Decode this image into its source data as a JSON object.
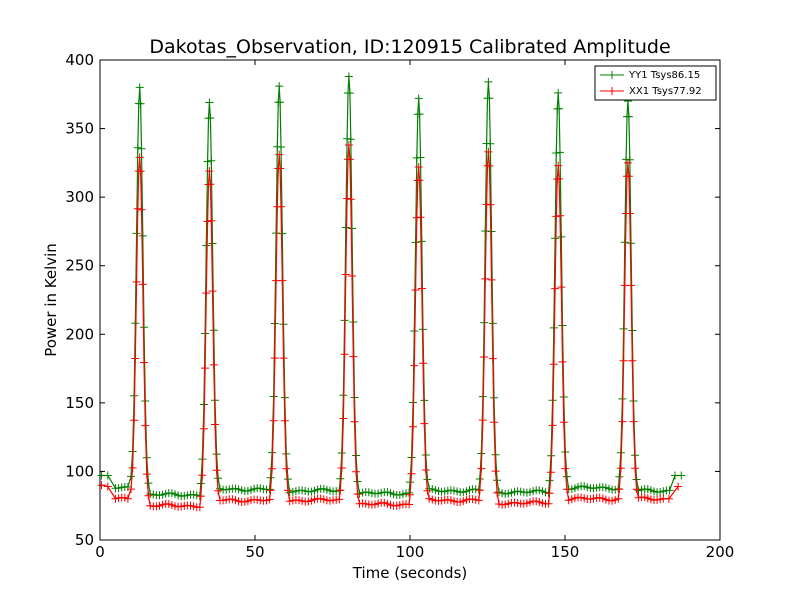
{
  "chart_data": {
    "type": "line",
    "title": "Dakotas_Observation, ID:120915 Calibrated Amplitude",
    "xlabel": "Time (seconds)",
    "ylabel": "Power in Kelvin",
    "xlim": [
      0,
      200
    ],
    "ylim": [
      50,
      400
    ],
    "xticks": [
      0,
      50,
      100,
      150,
      200
    ],
    "yticks": [
      50,
      100,
      150,
      200,
      250,
      300,
      350,
      400
    ],
    "grid": false,
    "legend_position": "top-right",
    "peak_times": [
      12.8,
      35.3,
      57.8,
      80.3,
      102.8,
      125.3,
      147.8,
      170.3
    ],
    "series": [
      {
        "name": "YY1 Tsys86.15",
        "color": "#008000",
        "marker": "+",
        "start": [
          [
            0.5,
            97
          ],
          [
            2.5,
            97
          ]
        ],
        "end": [
          [
            185.5,
            97
          ],
          [
            187.5,
            97
          ]
        ],
        "peaks": [
          380,
          369,
          381,
          388,
          372,
          384,
          376,
          370
        ],
        "baselines": [
          88,
          83,
          87,
          86,
          84,
          86,
          85,
          88,
          86
        ]
      },
      {
        "name": "XX1 Tsys77.92",
        "color": "#ff0000",
        "marker": "+",
        "start": [
          [
            0.5,
            90
          ],
          [
            2.5,
            89
          ]
        ],
        "end": [
          [
            183.5,
            80
          ],
          [
            186.5,
            89
          ]
        ],
        "peaks": [
          329,
          319,
          331,
          338,
          322,
          333,
          323,
          325
        ],
        "baselines": [
          80,
          75,
          79,
          79,
          76,
          79,
          77,
          80,
          80
        ]
      }
    ]
  }
}
